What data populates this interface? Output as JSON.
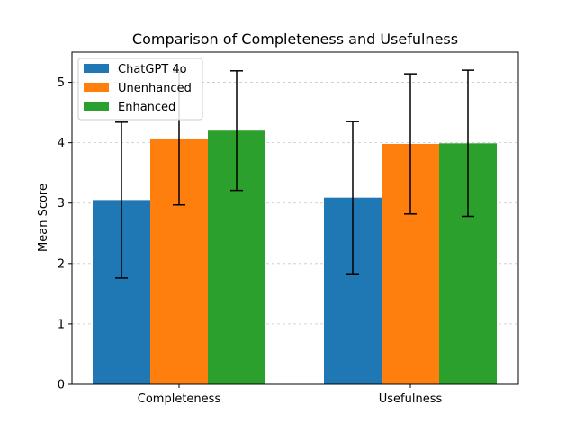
{
  "chart_data": {
    "type": "bar",
    "title": "Comparison of Completeness and Usefulness",
    "xlabel": "",
    "ylabel": "Mean Score",
    "categories": [
      "Completeness",
      "Usefulness"
    ],
    "ylim": [
      0,
      5.5
    ],
    "yticks": [
      0,
      1,
      2,
      3,
      4,
      5
    ],
    "grid": "y-dashed",
    "legend_position": "top-left",
    "series": [
      {
        "name": "ChatGPT 4o",
        "color": "#1f77b4",
        "values": [
          3.05,
          3.09
        ],
        "errors": [
          1.29,
          1.26
        ]
      },
      {
        "name": "Unenhanced",
        "color": "#ff7f0e",
        "values": [
          4.07,
          3.98
        ],
        "errors": [
          1.1,
          1.16
        ]
      },
      {
        "name": "Enhanced",
        "color": "#2ca02c",
        "values": [
          4.2,
          3.99
        ],
        "errors": [
          0.99,
          1.21
        ]
      }
    ]
  }
}
